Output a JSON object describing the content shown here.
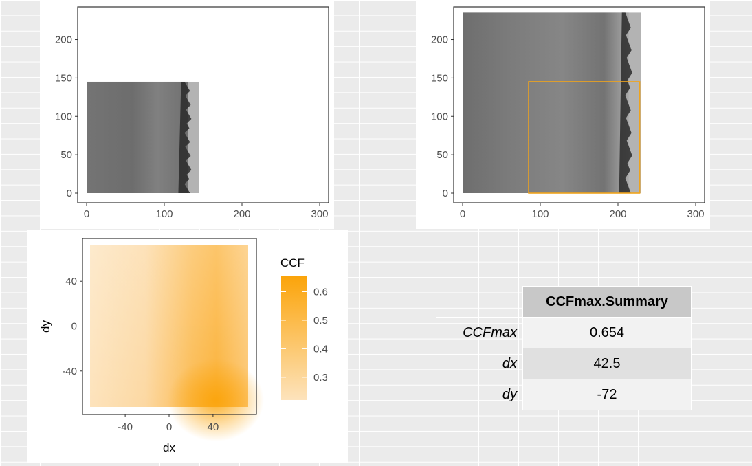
{
  "chart_data": [
    {
      "type": "heatmap",
      "x_ticks": [
        "0",
        "100",
        "200",
        "300"
      ],
      "y_ticks": [
        "0",
        "50",
        "100",
        "150",
        "200"
      ],
      "xlim": [
        0,
        300
      ],
      "ylim": [
        0,
        230
      ],
      "image_extent": {
        "x": [
          0,
          145
        ],
        "y": [
          0,
          145
        ]
      },
      "colors": {
        "panel": "#ffffff",
        "border": "#333333",
        "surface": "#7a7a7a"
      }
    },
    {
      "type": "heatmap",
      "x_ticks": [
        "0",
        "100",
        "200",
        "300"
      ],
      "y_ticks": [
        "0",
        "50",
        "100",
        "150",
        "200"
      ],
      "xlim": [
        0,
        300
      ],
      "ylim": [
        0,
        230
      ],
      "image_extent": {
        "x": [
          0,
          230
        ],
        "y": [
          0,
          235
        ]
      },
      "highlight_box": {
        "x": [
          85,
          228
        ],
        "y": [
          0,
          145
        ],
        "color": "#f0a41c"
      },
      "colors": {
        "panel": "#ffffff",
        "border": "#333333",
        "surface": "#7f7f7f"
      }
    },
    {
      "type": "heatmap",
      "xlabel": "dx",
      "ylabel": "dy",
      "x_ticks": [
        "-40",
        "0",
        "40"
      ],
      "y_ticks": [
        "40",
        "0",
        "-40"
      ],
      "xlim": [
        -72,
        72
      ],
      "ylim": [
        -72,
        72
      ],
      "peak": {
        "dx": 42.5,
        "dy": -72
      },
      "legend": {
        "title": "CCF",
        "ticks": [
          "0.6",
          "0.5",
          "0.4",
          "0.3"
        ],
        "range": [
          0.22,
          0.654
        ],
        "low_color": "#fde3bc",
        "high_color": "#fba40a"
      }
    },
    {
      "type": "table",
      "header": "CCFmax.Summary",
      "rows": [
        {
          "label": "CCFmax",
          "value": "0.654"
        },
        {
          "label": "dx",
          "value": "42.5"
        },
        {
          "label": "dy",
          "value": "-72"
        }
      ]
    }
  ]
}
